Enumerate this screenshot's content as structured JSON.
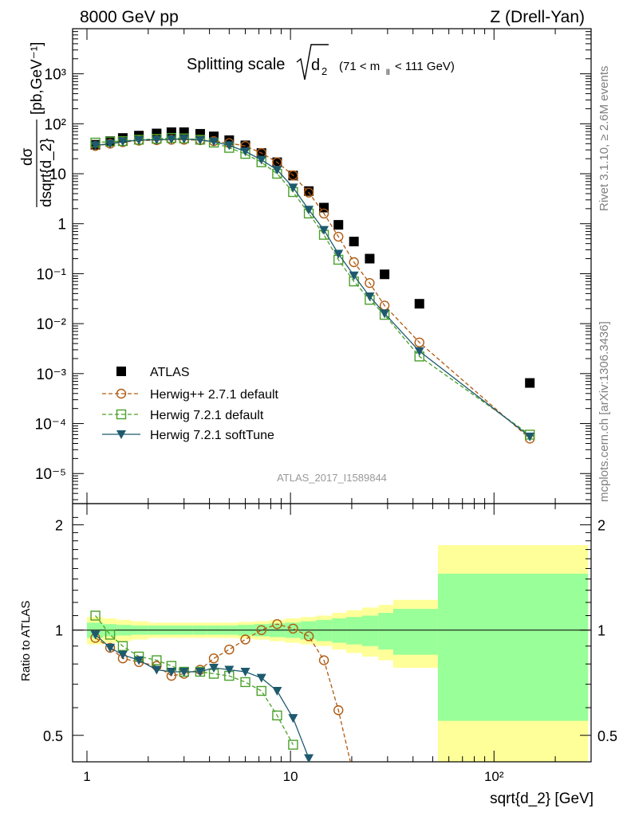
{
  "header": {
    "left": "8000 GeV pp",
    "right": "Z (Drell-Yan)"
  },
  "side_labels": {
    "rivet": "Rivet 3.1.10, ≥ 2.6M events",
    "mcplots": "mcplots.cern.ch [arXiv:1306.3436]"
  },
  "analysis_id": "ATLAS_2017_I1589844",
  "colors": {
    "atlas": "#000000",
    "herwigpp": "#b05a10",
    "herwig721": "#4aa02a",
    "softtune": "#1e5a6e",
    "band_inner": "#99ff99",
    "band_outer": "#ffff99"
  },
  "chart_data": [
    {
      "type": "scatter",
      "panel": "main",
      "title": "Splitting scale √d₂ (71 < m_ll < 111 GeV)",
      "xlabel": "sqrt{d_2} [GeV]",
      "ylabel": "dσ/dsqrt{d_2} [pb,GeV⁻¹]",
      "xscale": "log",
      "yscale": "log",
      "xlim": [
        0.85,
        300
      ],
      "ylim": [
        2.5e-06,
        8000
      ],
      "y_ticks": [
        "10⁻⁵",
        "10⁻⁴",
        "10⁻³",
        "10⁻²",
        "10⁻¹",
        "1",
        "10",
        "10²",
        "10³"
      ],
      "x_ticks": [
        "1",
        "10",
        "10²"
      ],
      "legend_position": "lower-left",
      "series": [
        {
          "name": "ATLAS",
          "x": [
            1.1,
            1.3,
            1.5,
            1.8,
            2.2,
            2.6,
            3.0,
            3.6,
            4.2,
            5.0,
            6.0,
            7.2,
            8.6,
            10.3,
            12.3,
            14.6,
            17.2,
            20.5,
            24.5,
            29.0,
            43.0,
            150.0
          ],
          "y": [
            38,
            45,
            52,
            58,
            64,
            68,
            68,
            63,
            56,
            47,
            37,
            26,
            17,
            9.2,
            4.5,
            2.1,
            0.95,
            0.44,
            0.2,
            0.097,
            0.025,
            0.00065
          ]
        },
        {
          "name": "Herwig++ 2.7.1 default",
          "x": [
            1.1,
            1.3,
            1.5,
            1.8,
            2.2,
            2.6,
            3.0,
            3.6,
            4.2,
            5.0,
            6.0,
            7.2,
            8.6,
            10.3,
            12.3,
            14.6,
            17.2,
            20.5,
            24.5,
            29.0,
            43.0,
            150.0
          ],
          "y": [
            36,
            40,
            43,
            46,
            47,
            48,
            48,
            47,
            45,
            41,
            36,
            26,
            17,
            9.3,
            4.2,
            1.6,
            0.55,
            0.17,
            0.065,
            0.023,
            0.0042,
            5e-05
          ]
        },
        {
          "name": "Herwig 7.2.1 default",
          "x": [
            1.1,
            1.3,
            1.5,
            1.8,
            2.2,
            2.6,
            3.0,
            3.6,
            4.2,
            5.0,
            6.0,
            7.2,
            8.6,
            10.3,
            12.3,
            14.6,
            17.2,
            20.5,
            24.5,
            29.0,
            43.0,
            150.0
          ],
          "y": [
            42,
            44,
            45,
            48,
            50,
            52,
            51,
            48,
            42,
            33,
            25,
            17,
            10,
            4.3,
            1.6,
            0.6,
            0.19,
            0.07,
            0.03,
            0.015,
            0.0022,
            6e-05
          ]
        },
        {
          "name": "Herwig 7.2.1 softTune",
          "x": [
            1.1,
            1.3,
            1.5,
            1.8,
            2.2,
            2.6,
            3.0,
            3.6,
            4.2,
            5.0,
            6.0,
            7.2,
            8.6,
            10.3,
            12.3,
            14.6,
            17.2,
            20.5,
            24.5,
            29.0,
            43.0,
            150.0
          ],
          "y": [
            37,
            40,
            44,
            47,
            48,
            49,
            50,
            47,
            44,
            37,
            28,
            19,
            12,
            5.3,
            1.9,
            0.75,
            0.25,
            0.092,
            0.035,
            0.016,
            0.0028,
            5.5e-05
          ]
        }
      ]
    },
    {
      "type": "line",
      "panel": "ratio",
      "ylabel": "Ratio to ATLAS",
      "xlabel": "sqrt{d_2} [GeV]",
      "xscale": "log",
      "xlim": [
        0.85,
        300
      ],
      "ylim": [
        0.42,
        2.3
      ],
      "y_ticks": [
        "0.5",
        "1",
        "2"
      ],
      "x_ticks": [
        "1",
        "10",
        "10²"
      ],
      "bin_edges": [
        1.0,
        1.2,
        1.4,
        1.65,
        2.0,
        2.4,
        2.8,
        3.3,
        3.9,
        4.6,
        5.5,
        6.6,
        7.9,
        9.4,
        11.2,
        13.4,
        16.0,
        18.8,
        22.5,
        27.0,
        32.0,
        53.0,
        290.0
      ],
      "band_inner": [
        0.05,
        0.04,
        0.035,
        0.03,
        0.03,
        0.03,
        0.03,
        0.03,
        0.03,
        0.03,
        0.035,
        0.04,
        0.045,
        0.05,
        0.06,
        0.07,
        0.08,
        0.09,
        0.1,
        0.12,
        0.15,
        0.45
      ],
      "band_outer": [
        0.09,
        0.08,
        0.07,
        0.06,
        0.05,
        0.05,
        0.05,
        0.05,
        0.05,
        0.05,
        0.055,
        0.06,
        0.07,
        0.08,
        0.09,
        0.1,
        0.12,
        0.14,
        0.16,
        0.18,
        0.22,
        0.75
      ],
      "series": [
        {
          "name": "Herwig++ 2.7.1 default",
          "x": [
            1.1,
            1.3,
            1.5,
            1.8,
            2.2,
            2.6,
            3.0,
            3.6,
            4.2,
            5.0,
            6.0,
            7.2,
            8.6,
            10.3,
            12.3,
            14.6,
            17.2,
            20.5
          ],
          "y": [
            0.95,
            0.89,
            0.83,
            0.81,
            0.79,
            0.74,
            0.75,
            0.77,
            0.83,
            0.88,
            0.94,
            1.0,
            1.04,
            1.01,
            0.96,
            0.82,
            0.59,
            0.38
          ]
        },
        {
          "name": "Herwig 7.2.1 default",
          "x": [
            1.1,
            1.3,
            1.5,
            1.8,
            2.2,
            2.6,
            3.0,
            3.6,
            4.2,
            5.0,
            6.0,
            7.2,
            8.6,
            10.3
          ],
          "y": [
            1.1,
            0.97,
            0.9,
            0.84,
            0.82,
            0.79,
            0.76,
            0.76,
            0.75,
            0.74,
            0.71,
            0.67,
            0.57,
            0.47
          ]
        },
        {
          "name": "Herwig 7.2.1 softTune",
          "x": [
            1.1,
            1.3,
            1.5,
            1.8,
            2.2,
            2.6,
            3.0,
            3.6,
            4.2,
            5.0,
            6.0,
            7.2,
            8.6,
            10.3,
            12.3
          ],
          "y": [
            0.97,
            0.89,
            0.85,
            0.82,
            0.77,
            0.76,
            0.76,
            0.76,
            0.78,
            0.77,
            0.76,
            0.73,
            0.67,
            0.56,
            0.43
          ]
        }
      ]
    }
  ]
}
